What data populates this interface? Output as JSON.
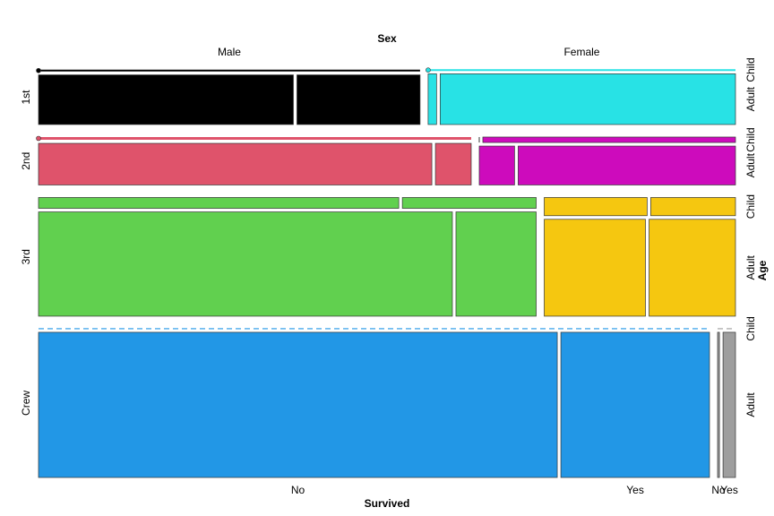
{
  "chart_data": {
    "type": "mosaic",
    "title": "",
    "xlabel": "Survived",
    "sex_header": "Sex",
    "age_header": "Age",
    "class_order": [
      "1st",
      "2nd",
      "3rd",
      "Crew"
    ],
    "sex_order": [
      "Male",
      "Female"
    ],
    "age_order": [
      "Child",
      "Adult"
    ],
    "survived_order": [
      "No",
      "Yes"
    ],
    "colors": {
      "1st": "#000000",
      "2nd": "#DF536B",
      "3rd": "#61D04F",
      "Crew": "#2297E6",
      "Female_1st": "#28E2E5",
      "Female_2nd": "#CD0BBC",
      "Female_3rd": "#F5C710",
      "Female_Crew": "#9E9E9E"
    },
    "counts": {
      "1st": {
        "Male": {
          "Child": {
            "No": 0,
            "Yes": 5
          },
          "Adult": {
            "No": 118,
            "Yes": 57
          }
        },
        "Female": {
          "Child": {
            "No": 0,
            "Yes": 1
          },
          "Adult": {
            "No": 4,
            "Yes": 140
          }
        }
      },
      "2nd": {
        "Male": {
          "Child": {
            "No": 0,
            "Yes": 11
          },
          "Adult": {
            "No": 154,
            "Yes": 14
          }
        },
        "Female": {
          "Child": {
            "No": 0,
            "Yes": 13
          },
          "Adult": {
            "No": 13,
            "Yes": 80
          }
        }
      },
      "3rd": {
        "Male": {
          "Child": {
            "No": 35,
            "Yes": 13
          },
          "Adult": {
            "No": 387,
            "Yes": 75
          }
        },
        "Female": {
          "Child": {
            "No": 17,
            "Yes": 14
          },
          "Adult": {
            "No": 89,
            "Yes": 76
          }
        }
      },
      "Crew": {
        "Male": {
          "Child": {
            "No": 0,
            "Yes": 0
          },
          "Adult": {
            "No": 670,
            "Yes": 192
          }
        },
        "Female": {
          "Child": {
            "No": 0,
            "Yes": 0
          },
          "Adult": {
            "No": 3,
            "Yes": 20
          }
        }
      }
    }
  }
}
